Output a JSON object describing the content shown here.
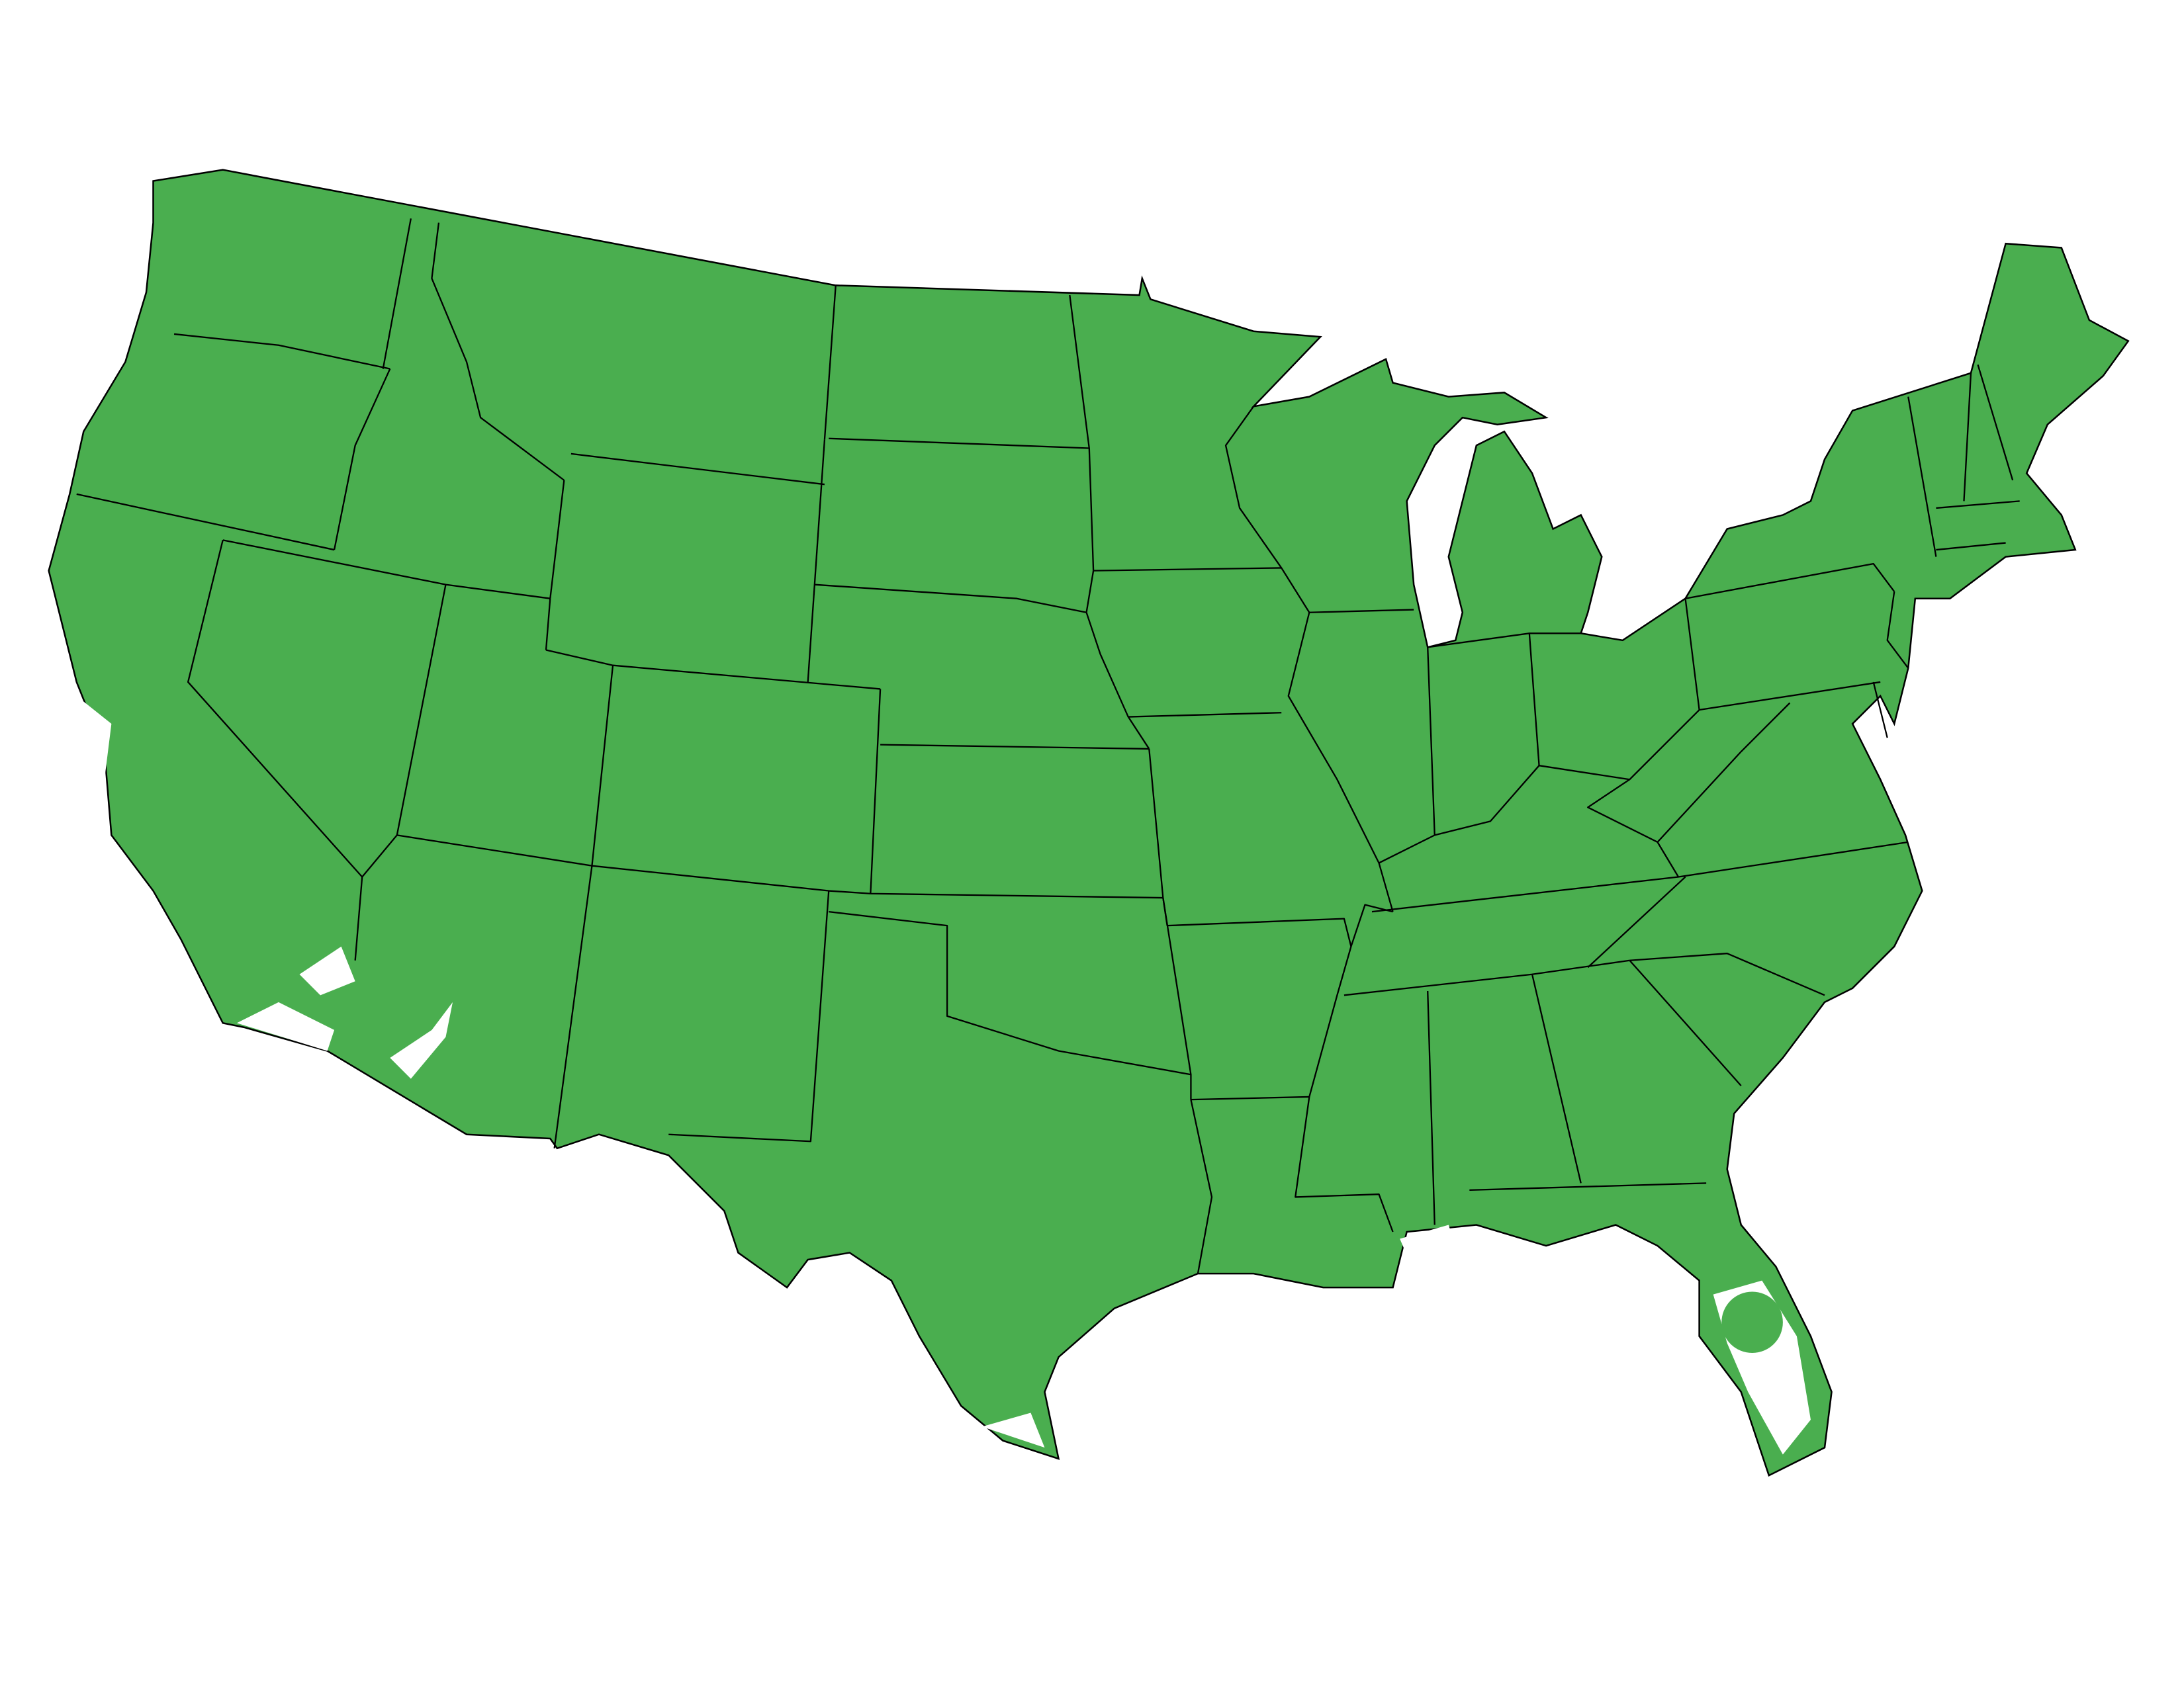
{
  "map": {
    "fill_color": "#4aae4f",
    "border_color": "#000000",
    "background_color": "#ffffff",
    "gap_color": "#ffffff"
  }
}
